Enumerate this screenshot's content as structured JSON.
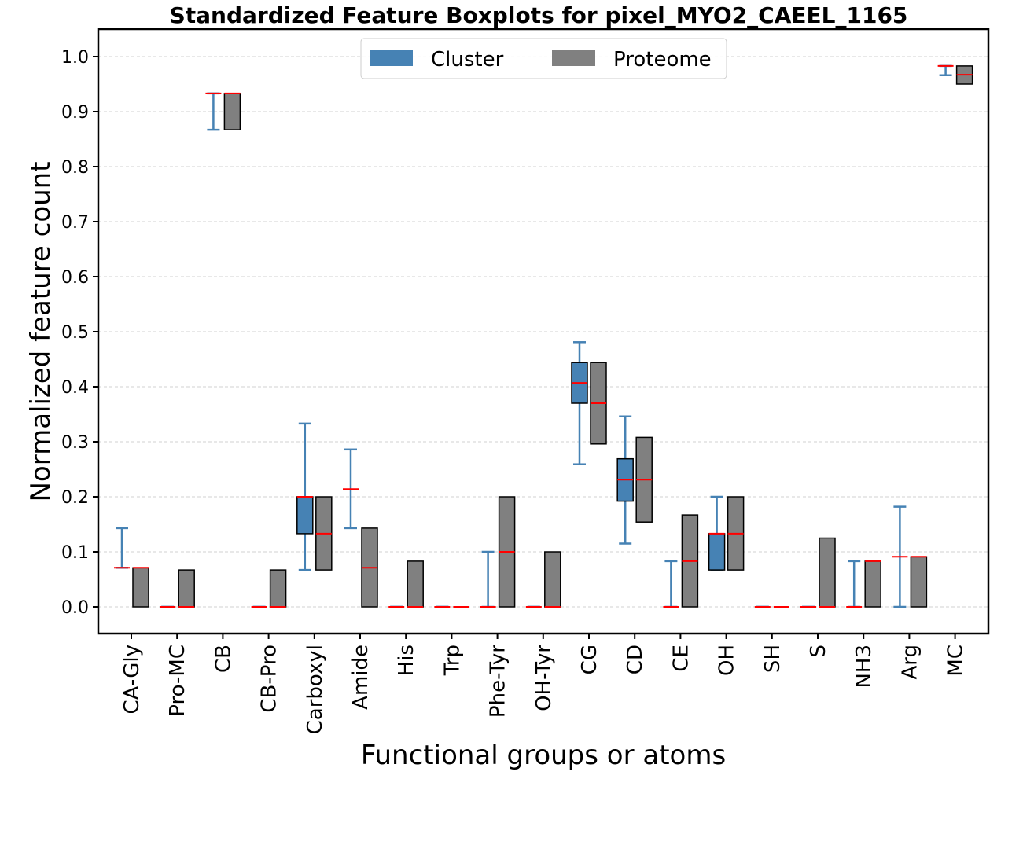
{
  "chart_data": {
    "type": "boxplot",
    "title": "Standardized Feature Boxplots for pixel_MYO2_CAEEL_1165",
    "xlabel": "Functional groups or atoms",
    "ylabel": "Normalized feature count",
    "ylim": [
      -0.05,
      1.05
    ],
    "yticks": [
      0.0,
      0.1,
      0.2,
      0.3,
      0.4,
      0.5,
      0.6,
      0.7,
      0.8,
      0.9,
      1.0
    ],
    "ytick_labels": [
      "0.0",
      "0.1",
      "0.2",
      "0.3",
      "0.4",
      "0.5",
      "0.6",
      "0.7",
      "0.8",
      "0.9",
      "1.0"
    ],
    "grid": "y-dashed",
    "legend_position": "top-center",
    "categories": [
      "CA-Gly",
      "Pro-MC",
      "CB",
      "CB-Pro",
      "Carboxyl",
      "Amide",
      "His",
      "Trp",
      "Phe-Tyr",
      "OH-Tyr",
      "CG",
      "CD",
      "CE",
      "OH",
      "SH",
      "S",
      "NH3",
      "Arg",
      "MC"
    ],
    "series": [
      {
        "name": "Cluster",
        "color": "#4682b4",
        "whiskers": true,
        "stats": [
          {
            "wlo": 0.071,
            "q1": 0.071,
            "med": 0.071,
            "q3": 0.071,
            "whi": 0.143
          },
          {
            "wlo": 0.0,
            "q1": 0.0,
            "med": 0.0,
            "q3": 0.0,
            "whi": 0.0
          },
          {
            "wlo": 0.867,
            "q1": 0.933,
            "med": 0.933,
            "q3": 0.933,
            "whi": 0.933
          },
          {
            "wlo": 0.0,
            "q1": 0.0,
            "med": 0.0,
            "q3": 0.0,
            "whi": 0.0
          },
          {
            "wlo": 0.067,
            "q1": 0.133,
            "med": 0.2,
            "q3": 0.2,
            "whi": 0.333
          },
          {
            "wlo": 0.143,
            "q1": 0.214,
            "med": 0.214,
            "q3": 0.214,
            "whi": 0.286
          },
          {
            "wlo": 0.0,
            "q1": 0.0,
            "med": 0.0,
            "q3": 0.0,
            "whi": 0.0
          },
          {
            "wlo": 0.0,
            "q1": 0.0,
            "med": 0.0,
            "q3": 0.0,
            "whi": 0.0
          },
          {
            "wlo": 0.0,
            "q1": 0.0,
            "med": 0.0,
            "q3": 0.0,
            "whi": 0.1
          },
          {
            "wlo": 0.0,
            "q1": 0.0,
            "med": 0.0,
            "q3": 0.0,
            "whi": 0.0
          },
          {
            "wlo": 0.259,
            "q1": 0.37,
            "med": 0.407,
            "q3": 0.444,
            "whi": 0.481
          },
          {
            "wlo": 0.115,
            "q1": 0.192,
            "med": 0.231,
            "q3": 0.269,
            "whi": 0.346
          },
          {
            "wlo": 0.0,
            "q1": 0.0,
            "med": 0.0,
            "q3": 0.0,
            "whi": 0.083
          },
          {
            "wlo": 0.067,
            "q1": 0.067,
            "med": 0.133,
            "q3": 0.133,
            "whi": 0.2
          },
          {
            "wlo": 0.0,
            "q1": 0.0,
            "med": 0.0,
            "q3": 0.0,
            "whi": 0.0
          },
          {
            "wlo": 0.0,
            "q1": 0.0,
            "med": 0.0,
            "q3": 0.0,
            "whi": 0.0
          },
          {
            "wlo": 0.0,
            "q1": 0.0,
            "med": 0.0,
            "q3": 0.0,
            "whi": 0.083
          },
          {
            "wlo": 0.0,
            "q1": 0.091,
            "med": 0.091,
            "q3": 0.091,
            "whi": 0.182
          },
          {
            "wlo": 0.966,
            "q1": 0.983,
            "med": 0.983,
            "q3": 0.983,
            "whi": 0.983
          }
        ]
      },
      {
        "name": "Proteome",
        "color": "#808080",
        "whiskers": false,
        "stats": [
          {
            "q1": 0.0,
            "med": 0.071,
            "q3": 0.071
          },
          {
            "q1": 0.0,
            "med": 0.0,
            "q3": 0.067
          },
          {
            "q1": 0.867,
            "med": 0.933,
            "q3": 0.933
          },
          {
            "q1": 0.0,
            "med": 0.0,
            "q3": 0.067
          },
          {
            "q1": 0.067,
            "med": 0.133,
            "q3": 0.2
          },
          {
            "q1": 0.0,
            "med": 0.071,
            "q3": 0.143
          },
          {
            "q1": 0.0,
            "med": 0.0,
            "q3": 0.083
          },
          {
            "q1": 0.0,
            "med": 0.0,
            "q3": 0.0
          },
          {
            "q1": 0.0,
            "med": 0.1,
            "q3": 0.2
          },
          {
            "q1": 0.0,
            "med": 0.0,
            "q3": 0.1
          },
          {
            "q1": 0.296,
            "med": 0.37,
            "q3": 0.444
          },
          {
            "q1": 0.154,
            "med": 0.231,
            "q3": 0.308
          },
          {
            "q1": 0.0,
            "med": 0.083,
            "q3": 0.167
          },
          {
            "q1": 0.067,
            "med": 0.133,
            "q3": 0.2
          },
          {
            "q1": 0.0,
            "med": 0.0,
            "q3": 0.0
          },
          {
            "q1": 0.0,
            "med": 0.0,
            "q3": 0.125
          },
          {
            "q1": 0.0,
            "med": 0.083,
            "q3": 0.083
          },
          {
            "q1": 0.0,
            "med": 0.091,
            "q3": 0.091
          },
          {
            "q1": 0.95,
            "med": 0.967,
            "q3": 0.983
          }
        ]
      }
    ],
    "median_color": "#ff0000"
  }
}
